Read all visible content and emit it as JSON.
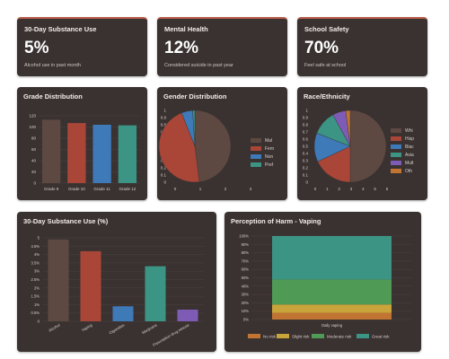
{
  "stats": [
    {
      "title": "30-Day Substance Use",
      "value": "5%",
      "sub": "Alcohol use in past month"
    },
    {
      "title": "Mental Health",
      "value": "12%",
      "sub": "Considered suicide in past year"
    },
    {
      "title": "School Safety",
      "value": "70%",
      "sub": "Feel safe at school"
    }
  ],
  "charts": {
    "grade": {
      "title": "Grade Distribution"
    },
    "gender": {
      "title": "Gender Distribution"
    },
    "race": {
      "title": "Race/Ethnicity"
    },
    "substance": {
      "title": "30-Day Substance Use (%)"
    },
    "harm": {
      "title": "Perception of Harm - Vaping"
    }
  },
  "colors": {
    "brown": "#5d4942",
    "red": "#a94638",
    "blue": "#3e79b8",
    "teal": "#3b9484",
    "purple": "#7e5bb5",
    "orange": "#c27433",
    "yellow": "#c9a43a",
    "green": "#4f9b55",
    "card": "#3a3231",
    "accent": "#b85b48"
  },
  "chart_data": [
    {
      "type": "bar",
      "title": "Grade Distribution",
      "categories": [
        "Grade 9",
        "Grade 10",
        "Grade 11",
        "Grade 12"
      ],
      "values": [
        113,
        107,
        104,
        103
      ],
      "ylim": [
        0,
        120
      ],
      "yticks": [
        "0",
        "20",
        "40",
        "60",
        "80",
        "100",
        "120"
      ],
      "colors": [
        "#5d4942",
        "#a94638",
        "#3e79b8",
        "#3b9484"
      ]
    },
    {
      "type": "pie",
      "title": "Gender Distribution",
      "labels": [
        "Mal",
        "Fem",
        "Non",
        "Pref"
      ],
      "values": [
        0.48,
        0.46,
        0.05,
        0.01
      ],
      "colors": [
        "#5d4942",
        "#a94638",
        "#3e79b8",
        "#3b9484"
      ],
      "xticks": [
        "0",
        "1",
        "2",
        "3"
      ],
      "yticks": [
        "0",
        "0.1",
        "0.2",
        "0.3",
        "0.4",
        "0.5",
        "0.6",
        "0.7",
        "0.8",
        "0.9",
        "1"
      ]
    },
    {
      "type": "pie",
      "title": "Race/Ethnicity",
      "labels": [
        "Whi",
        "Hisp",
        "Blac",
        "Asia",
        "Mult",
        "Oth"
      ],
      "values": [
        0.5,
        0.18,
        0.13,
        0.11,
        0.06,
        0.02
      ],
      "colors": [
        "#5d4942",
        "#a94638",
        "#3e79b8",
        "#3b9484",
        "#7e5bb5",
        "#c27433"
      ],
      "xticks": [
        "0",
        "1",
        "2",
        "3",
        "4",
        "5",
        "6"
      ],
      "yticks": [
        "0",
        "0.1",
        "0.2",
        "0.3",
        "0.4",
        "0.5",
        "0.6",
        "0.7",
        "0.8",
        "0.9",
        "1"
      ]
    },
    {
      "type": "bar",
      "title": "30-Day Substance Use (%)",
      "categories": [
        "Alcohol",
        "Vaping",
        "Cigarettes",
        "Marijuana",
        "Prescription drug misuse"
      ],
      "values": [
        4.9,
        4.2,
        0.9,
        3.3,
        0.7
      ],
      "ylim": [
        0,
        5
      ],
      "yticks": [
        "0",
        "0.5%",
        "1%",
        "1.5%",
        "2%",
        "2.5%",
        "3%",
        "3.5%",
        "4%",
        "4.5%",
        "5"
      ],
      "colors": [
        "#5d4942",
        "#a94638",
        "#3e79b8",
        "#3b9484",
        "#7e5bb5"
      ]
    },
    {
      "type": "bar",
      "stacked": true,
      "title": "Perception of Harm - Vaping",
      "categories": [
        "Daily vaping"
      ],
      "series": [
        {
          "name": "No risk",
          "values": [
            8
          ]
        },
        {
          "name": "Slight risk",
          "values": [
            10
          ]
        },
        {
          "name": "Moderate risk",
          "values": [
            30
          ]
        },
        {
          "name": "Great risk",
          "values": [
            52
          ]
        }
      ],
      "ylim": [
        0,
        100
      ],
      "yticks": [
        "0%",
        "10%",
        "20%",
        "30%",
        "40%",
        "50%",
        "60%",
        "70%",
        "80%",
        "90%",
        "100%"
      ],
      "colors": [
        "#c27433",
        "#c9a43a",
        "#4f9b55",
        "#3b9484"
      ]
    }
  ]
}
